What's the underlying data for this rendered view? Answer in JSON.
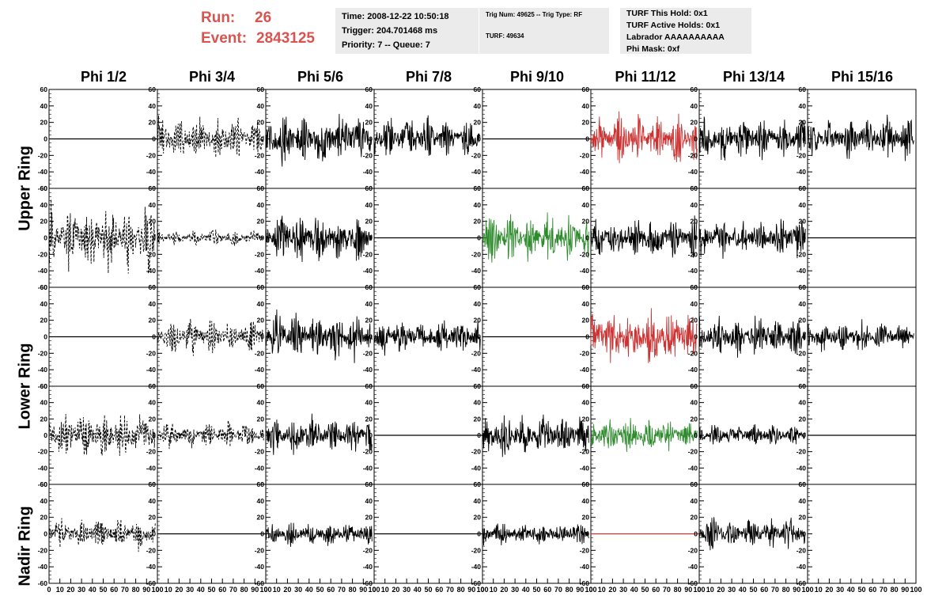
{
  "header": {
    "run_label": "Run:",
    "run_value": "26",
    "event_label": "Event:",
    "event_value": "2843125",
    "time_line": "Time: 2008-12-22 10:50:18",
    "trigger_line": "Trigger: 204.701468 ms",
    "priority_line": "Priority: 7 -- Queue: 7",
    "trig_line": "Trig Num: 49625 -- Trig Type: RF",
    "turf_line": "TURF: 49634",
    "turf_hold": "TURF This Hold: 0x1",
    "turf_active": "TURF Active Holds: 0x1",
    "labrador": "Labrador AAAAAAAAAA",
    "phi_mask": "Phi Mask: 0xf"
  },
  "columns": [
    "Phi 1/2",
    "Phi 3/4",
    "Phi 5/6",
    "Phi 7/8",
    "Phi 9/10",
    "Phi 11/12",
    "Phi 13/14",
    "Phi 15/16"
  ],
  "ring_labels": [
    {
      "text": "Upper Ring"
    },
    {
      "text": "Lower Ring"
    },
    {
      "text": "Nadir Ring"
    }
  ],
  "chart_data": {
    "type": "line",
    "xlim": [
      0,
      100
    ],
    "ylim": [
      -60,
      60
    ],
    "y_ticks": [
      -60,
      -40,
      -20,
      0,
      20,
      40,
      60
    ],
    "x_ticks": [
      0,
      10,
      20,
      30,
      40,
      50,
      60,
      70,
      80,
      90,
      100
    ],
    "colors": {
      "normal": "#000000",
      "triggered": "#cc3333",
      "phi_masked": "#2e8b2e"
    },
    "panels": [
      [
        "flat",
        "dashed",
        "solid",
        "solid",
        "flat",
        "red",
        "solid",
        "solid"
      ],
      [
        "dashed",
        "dashed",
        "solid",
        "flat",
        "green",
        "solid",
        "solid",
        "flat"
      ],
      [
        "flat",
        "dashed",
        "solid",
        "solid",
        "flat",
        "red",
        "solid",
        "solid"
      ],
      [
        "dashed",
        "dashed",
        "solid",
        "flat",
        "solid",
        "green",
        "solid",
        "flat"
      ],
      [
        "dashed",
        "flat",
        "solid",
        "flat",
        "solid",
        "redflat",
        "solid",
        "empty"
      ]
    ],
    "amplitudes": [
      [
        0,
        22,
        28,
        22,
        0,
        25,
        22,
        22
      ],
      [
        35,
        8,
        25,
        0,
        25,
        22,
        20,
        0
      ],
      [
        0,
        18,
        25,
        18,
        0,
        30,
        22,
        16
      ],
      [
        25,
        14,
        20,
        0,
        22,
        18,
        12,
        0
      ],
      [
        16,
        0,
        12,
        0,
        12,
        0,
        16,
        0
      ]
    ]
  }
}
